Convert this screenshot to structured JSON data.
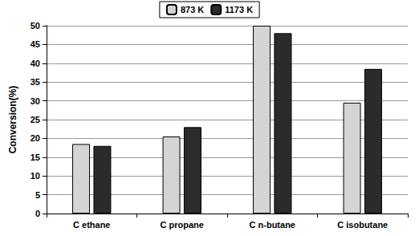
{
  "chart_data": {
    "type": "bar",
    "y_label": "Conversion(%)",
    "categories": [
      "C ethane",
      "C propane",
      "C n-butane",
      "C isobutane"
    ],
    "series": [
      {
        "name": "873 K",
        "color": "#d4d4d4",
        "values": [
          18.5,
          20.5,
          50,
          29.5
        ]
      },
      {
        "name": "1173 K",
        "color": "#2b2b2b",
        "values": [
          18,
          23,
          48,
          38.5
        ]
      }
    ],
    "ylim": [
      0,
      50
    ],
    "yticks": [
      0,
      5,
      10,
      15,
      20,
      25,
      30,
      35,
      40,
      45,
      50
    ],
    "grid": true,
    "legend": "top"
  }
}
